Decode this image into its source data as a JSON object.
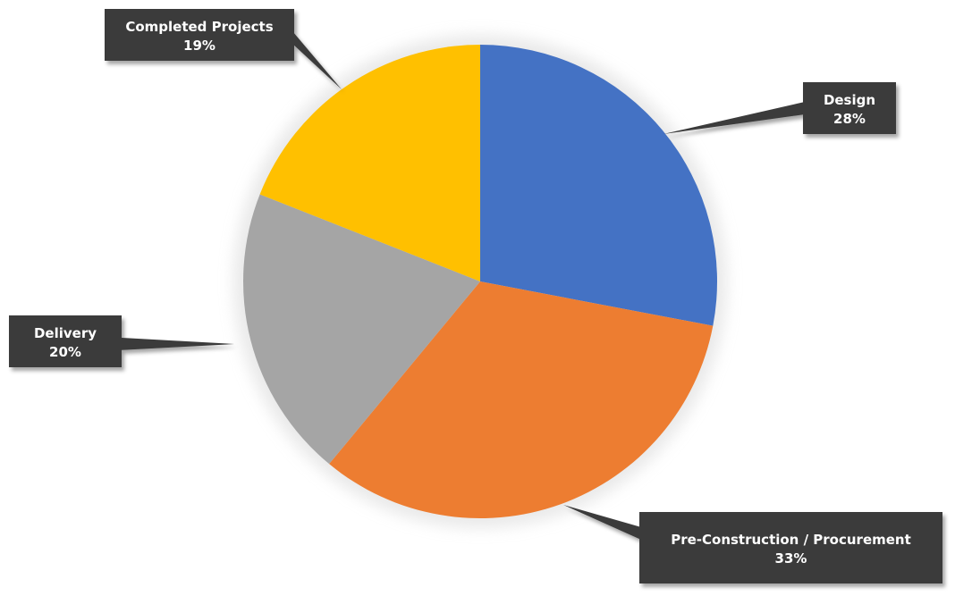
{
  "chart_data": {
    "type": "pie",
    "title": "",
    "start_angle_deg": 0,
    "direction": "clockwise",
    "slices": [
      {
        "label": "Design",
        "value": 28,
        "value_label": "28%",
        "color": "#4472C4"
      },
      {
        "label": "Pre-Construction / Procurement",
        "value": 33,
        "value_label": "33%",
        "color": "#ED7D31"
      },
      {
        "label": "Delivery",
        "value": 20,
        "value_label": "20%",
        "color": "#A5A5A5"
      },
      {
        "label": "Completed Projects",
        "value": 19,
        "value_label": "19%",
        "color": "#FFC000"
      }
    ],
    "callout_style": {
      "background": "#3A3A3A",
      "text_color": "#FFFFFF"
    }
  }
}
